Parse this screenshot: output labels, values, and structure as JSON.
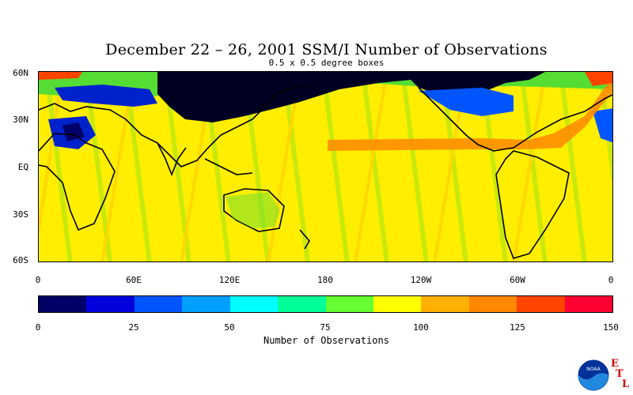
{
  "title": "December 22 – 26, 2001 SSM/I Number of Observations",
  "subtitle": "0.5 x 0.5 degree boxes",
  "map": {
    "lat_labels": [
      {
        "text": "60N",
        "lat": 60
      },
      {
        "text": "30N",
        "lat": 30
      },
      {
        "text": "EQ",
        "lat": 0
      },
      {
        "text": "30S",
        "lat": -30
      },
      {
        "text": "60S",
        "lat": -60
      }
    ],
    "lon_labels": [
      {
        "text": "0",
        "lon": 0
      },
      {
        "text": "60E",
        "lon": 60
      },
      {
        "text": "120E",
        "lon": 120
      },
      {
        "text": "180",
        "lon": 180
      },
      {
        "text": "120W",
        "lon": 240
      },
      {
        "text": "60W",
        "lon": 300
      },
      {
        "text": "0",
        "lon": 360
      }
    ],
    "lat_range": [
      -60,
      60
    ],
    "lon_range": [
      0,
      360
    ]
  },
  "colorbar": {
    "title": "Number of Observations",
    "colors": [
      "#000066",
      "#0000dd",
      "#0055ff",
      "#00a0ff",
      "#00ffff",
      "#00ff99",
      "#66ff33",
      "#ffff00",
      "#ffb000",
      "#ff8800",
      "#ff4400",
      "#ff0033"
    ],
    "ticks": [
      {
        "text": "0",
        "value": 0
      },
      {
        "text": "25",
        "value": 25
      },
      {
        "text": "50",
        "value": 50
      },
      {
        "text": "75",
        "value": 75
      },
      {
        "text": "100",
        "value": 100
      },
      {
        "text": "125",
        "value": 125
      },
      {
        "text": "150",
        "value": 150
      }
    ],
    "range": [
      0,
      150
    ]
  },
  "logo": {
    "noaa_text": "NOAA",
    "letters": [
      "E",
      "T",
      "L"
    ]
  }
}
